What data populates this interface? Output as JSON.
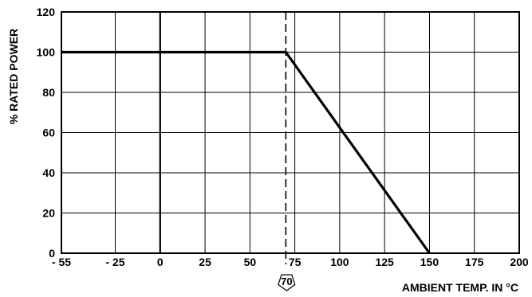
{
  "chart_data": {
    "type": "line",
    "title": "",
    "xlabel": "AMBIENT TEMP. IN °C",
    "ylabel": "% RATED POWER",
    "xlim": [
      -55,
      200
    ],
    "ylim": [
      0,
      120
    ],
    "x_ticks": [
      -55,
      -25,
      0,
      25,
      50,
      75,
      100,
      125,
      150,
      175,
      200
    ],
    "x_tick_labels": [
      "- 55",
      "- 25",
      "0",
      "25",
      "50",
      "75",
      "100",
      "125",
      "150",
      "175",
      "200"
    ],
    "y_ticks": [
      0,
      20,
      40,
      60,
      80,
      100,
      120
    ],
    "y_tick_labels": [
      "0",
      "20",
      "40",
      "60",
      "80",
      "100",
      "120"
    ],
    "grid": true,
    "series": [
      {
        "x": [
          -55,
          70,
          150
        ],
        "y": [
          100,
          100,
          0
        ]
      }
    ],
    "annotations": [
      {
        "text": "70",
        "x": 70,
        "style": "dashed-vertical-line-with-pentagon-callout"
      }
    ],
    "zero_reference_line_x": 0
  }
}
